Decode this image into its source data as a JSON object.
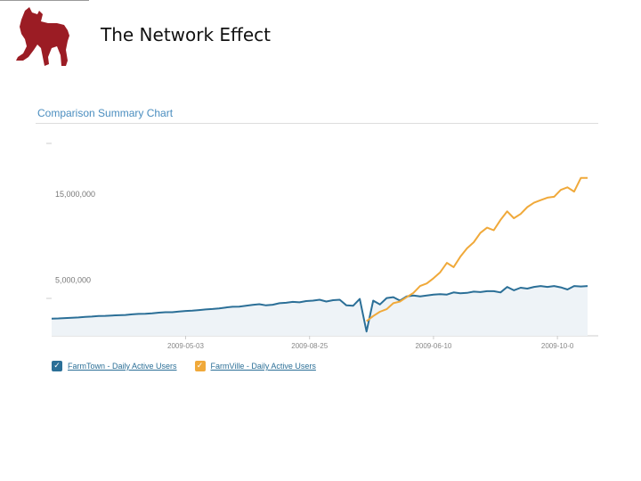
{
  "slide": {
    "title": "The Network Effect"
  },
  "chart_panel": {
    "header": "Comparison Summary Chart"
  },
  "colors": {
    "farmtown": "#2b6f97",
    "farmville": "#f0a93a",
    "logo": "#9b1c24",
    "header": "#4a8dbf"
  },
  "icons": {
    "logo": "dog-logo-icon",
    "legend_check": "checkmark-icon"
  },
  "chart_data": {
    "type": "line",
    "title": "Comparison Summary Chart",
    "xlabel": "",
    "ylabel": "",
    "x_tick_labels": [
      "2009-05-03",
      "2009-08-25",
      "2009-06-10",
      "2009-10-0"
    ],
    "y_tick_labels": [
      "15,000,000",
      "5,000,000"
    ],
    "y_ticks": [
      15000000,
      5000000
    ],
    "ylim": [
      -1500000,
      20500000
    ],
    "x": [
      0,
      2,
      4,
      6,
      8,
      10,
      12,
      14,
      16,
      18,
      20,
      22,
      24,
      26,
      28,
      30,
      32,
      34,
      36,
      38,
      40,
      42,
      44,
      46,
      48,
      50,
      52,
      54,
      56,
      58,
      60,
      62,
      64,
      66,
      68,
      70,
      72,
      74,
      76,
      78,
      80,
      82,
      84,
      86,
      88,
      90,
      92,
      94,
      96,
      98,
      100,
      102,
      104,
      106,
      108,
      110,
      112,
      114,
      116,
      118,
      120,
      122,
      124,
      126,
      128,
      130,
      132,
      134,
      136,
      138,
      140,
      142,
      144,
      146,
      148,
      150,
      152,
      154,
      156,
      158,
      160
    ],
    "xlim": [
      0,
      160
    ],
    "x_tick_positions": [
      40,
      77,
      114,
      151
    ],
    "grid": false,
    "legend_position": "bottom-left",
    "series": [
      {
        "name": "FarmTown - Daily Active Users",
        "color": "#2b6f97",
        "values": [
          500000,
          520000,
          560000,
          600000,
          640000,
          700000,
          740000,
          800000,
          820000,
          870000,
          900000,
          930000,
          1000000,
          1050000,
          1070000,
          1130000,
          1200000,
          1250000,
          1250000,
          1330000,
          1400000,
          1430000,
          1500000,
          1570000,
          1620000,
          1700000,
          1800000,
          1880000,
          1900000,
          2000000,
          2100000,
          2180000,
          2050000,
          2120000,
          2300000,
          2350000,
          2450000,
          2400000,
          2550000,
          2600000,
          2700000,
          2500000,
          2650000,
          2700000,
          2050000,
          2000000,
          2800000,
          -1000000,
          2600000,
          2150000,
          2900000,
          3000000,
          2600000,
          3100000,
          3200000,
          3100000,
          3200000,
          3300000,
          3350000,
          3300000,
          3550000,
          3450000,
          3500000,
          3650000,
          3600000,
          3700000,
          3700000,
          3550000,
          4200000,
          3800000,
          4100000,
          4000000,
          4200000,
          4300000,
          4200000,
          4300000,
          4150000,
          3900000,
          4300000,
          4250000,
          4300000
        ],
        "segments": [
          [
            0,
            80
          ]
        ]
      },
      {
        "name": "FarmVille - Daily Active Users",
        "color": "#f0a93a",
        "values": [
          null,
          null,
          null,
          null,
          null,
          null,
          null,
          null,
          null,
          null,
          null,
          null,
          null,
          null,
          null,
          null,
          null,
          null,
          null,
          null,
          null,
          null,
          null,
          null,
          null,
          null,
          null,
          null,
          null,
          null,
          null,
          null,
          null,
          null,
          null,
          null,
          null,
          null,
          null,
          null,
          null,
          null,
          null,
          null,
          null,
          null,
          null,
          200000,
          800000,
          1300000,
          1600000,
          2300000,
          2500000,
          3000000,
          3500000,
          4300000,
          4600000,
          5200000,
          5900000,
          7000000,
          6500000,
          7700000,
          8700000,
          9400000,
          10500000,
          11100000,
          10800000,
          12000000,
          13000000,
          12200000,
          12700000,
          13500000,
          14000000,
          14300000,
          14600000,
          14700000,
          15500000,
          15800000,
          15300000,
          16900000,
          16900000
        ],
        "segments": [
          [
            47,
            80
          ]
        ]
      }
    ]
  }
}
